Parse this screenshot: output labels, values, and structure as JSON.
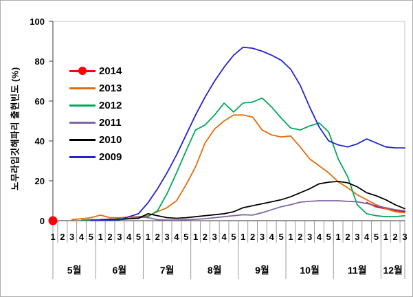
{
  "chart_data": {
    "type": "line",
    "title": "",
    "ylabel": "노무라입깃해파리 출현빈도 (%)",
    "xlabel": "",
    "ylim": [
      0,
      100
    ],
    "y_ticks": [
      0,
      20,
      40,
      60,
      80,
      100
    ],
    "grid": false,
    "legend_position": "inside-top-left",
    "x_axis": {
      "week_labels": [
        "1",
        "2",
        "3",
        "4",
        "5",
        "1",
        "2",
        "3",
        "4",
        "5",
        "1",
        "2",
        "3",
        "4",
        "5",
        "1",
        "2",
        "3",
        "4",
        "5",
        "1",
        "2",
        "3",
        "4",
        "5",
        "1",
        "2",
        "3",
        "4",
        "5",
        "1",
        "2",
        "3",
        "4",
        "5",
        "1",
        "2",
        "3"
      ],
      "months": [
        {
          "label": "5월",
          "weeks": 5
        },
        {
          "label": "6월",
          "weeks": 5
        },
        {
          "label": "7월",
          "weeks": 5
        },
        {
          "label": "8월",
          "weeks": 5
        },
        {
          "label": "9월",
          "weeks": 5
        },
        {
          "label": "10월",
          "weeks": 5
        },
        {
          "label": "11월",
          "weeks": 5
        },
        {
          "label": "12월",
          "weeks": 3
        }
      ]
    },
    "series": [
      {
        "name": "2014",
        "color": "#ff0000",
        "marker": "circle",
        "marker_indices": [
          0
        ],
        "values": [
          0,
          null,
          null,
          null,
          null,
          null,
          null,
          null,
          null,
          null,
          null,
          null,
          null,
          null,
          null,
          null,
          null,
          null,
          null,
          null,
          null,
          null,
          null,
          null,
          null,
          null,
          null,
          null,
          null,
          null,
          null,
          null,
          null,
          9,
          7,
          6,
          5,
          4.5
        ]
      },
      {
        "name": "2013",
        "color": "#e36c09",
        "values": [
          null,
          null,
          0.5,
          1,
          1.5,
          2.8,
          1.5,
          1.5,
          1.8,
          2,
          2.5,
          4.5,
          6.5,
          10,
          18,
          27,
          39,
          46,
          50,
          53,
          53,
          52,
          45.5,
          43,
          42,
          42.5,
          37,
          31,
          27.5,
          24,
          19.5,
          16.5,
          13,
          10.5,
          8,
          6,
          4.5,
          4
        ]
      },
      {
        "name": "2012",
        "color": "#00a859",
        "values": [
          null,
          null,
          null,
          0.3,
          0.5,
          0.5,
          0.5,
          1,
          1,
          1.5,
          2,
          5,
          13.5,
          24,
          35,
          45.5,
          48,
          53,
          59,
          54.5,
          59,
          59.5,
          61.5,
          57,
          51.5,
          46.5,
          45.5,
          47.5,
          49,
          44.5,
          31,
          22,
          8,
          3.5,
          2.5,
          2,
          2,
          2.5
        ]
      },
      {
        "name": "2011",
        "color": "#8064a2",
        "values": [
          null,
          null,
          null,
          null,
          null,
          null,
          0.3,
          0.5,
          1,
          2,
          1.5,
          0.5,
          0.3,
          0.3,
          0.5,
          0.7,
          1,
          1.5,
          2,
          2.5,
          3,
          2.8,
          4,
          5.5,
          7,
          8,
          9.3,
          9.7,
          10,
          10,
          10,
          9.7,
          9.5,
          8.6,
          7.5,
          6.5,
          5.5,
          5
        ]
      },
      {
        "name": "2010",
        "color": "#000000",
        "values": [
          null,
          null,
          null,
          null,
          null,
          0.5,
          0.7,
          0.7,
          1,
          1.2,
          3.5,
          2.5,
          1.5,
          1.2,
          1.5,
          2,
          2.5,
          3,
          3.5,
          4.5,
          6.5,
          7.5,
          8.5,
          9.5,
          10.5,
          12,
          14,
          16,
          18.5,
          19.3,
          19.7,
          19,
          17,
          14,
          12.5,
          10.5,
          8,
          6
        ]
      },
      {
        "name": "2009",
        "color": "#2222cc",
        "values": [
          null,
          null,
          null,
          null,
          0.3,
          0.3,
          0.3,
          0.5,
          2,
          3.5,
          9,
          16,
          24,
          33,
          43,
          53,
          62,
          70,
          77,
          83,
          87,
          86.5,
          85,
          83,
          80.5,
          76,
          68,
          57,
          47,
          40,
          38,
          37,
          38.5,
          41,
          39,
          37,
          36.5,
          36.5
        ]
      }
    ]
  }
}
